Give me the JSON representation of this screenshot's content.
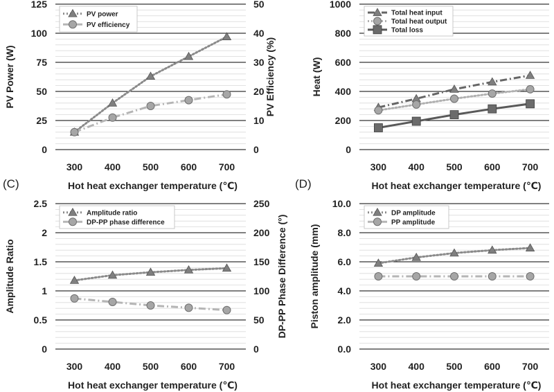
{
  "chart_data": [
    {
      "type": "line",
      "panel_label": "",
      "x": [
        300,
        400,
        500,
        600,
        700
      ],
      "xlabel": "Hot heat exchanger  temperature (℃)",
      "ylabel": "PV Power (W)",
      "ylim": [
        0,
        125
      ],
      "yticks": [
        "0",
        "25",
        "50",
        "75",
        "100",
        "125"
      ],
      "y2label": "PV Efficiency (%)",
      "y2lim": [
        0,
        50
      ],
      "y2ticks": [
        "0",
        "10",
        "20",
        "30",
        "40",
        "50"
      ],
      "grid": true,
      "legend_position": "top-left",
      "series": [
        {
          "name": "PV power",
          "axis": "left",
          "marker": "triangle",
          "line": "dotted",
          "color": "#8a8a8a",
          "values": [
            15,
            40,
            63,
            80,
            97
          ]
        },
        {
          "name": "PV efficiency",
          "axis": "right",
          "marker": "circle",
          "line": "dashdot",
          "color": "#b5b5b5",
          "values": [
            6,
            11,
            15,
            17,
            19
          ]
        }
      ]
    },
    {
      "type": "line",
      "panel_label": "",
      "x": [
        300,
        400,
        500,
        600,
        700
      ],
      "xlabel": "Hot heat exchanger  temperature (℃)",
      "ylabel": "Heat (W)",
      "ylim": [
        0,
        1000
      ],
      "yticks": [
        "0",
        "200",
        "400",
        "600",
        "800",
        "1000"
      ],
      "grid": true,
      "legend_position": "top-left",
      "series": [
        {
          "name": "Total heat input",
          "axis": "left",
          "marker": "triangle",
          "line": "dashdot",
          "color": "#666666",
          "values": [
            290,
            350,
            415,
            465,
            510
          ]
        },
        {
          "name": "Total heat output",
          "axis": "left",
          "marker": "circle",
          "line": "dotted",
          "color": "#b0b0b0",
          "values": [
            270,
            310,
            350,
            385,
            415
          ]
        },
        {
          "name": "Total loss",
          "axis": "left",
          "marker": "square",
          "line": "solid",
          "color": "#595959",
          "values": [
            150,
            195,
            240,
            280,
            315
          ]
        }
      ]
    },
    {
      "type": "line",
      "panel_label": "(C)",
      "x": [
        300,
        400,
        500,
        600,
        700
      ],
      "xlabel": "Hot heat exchanger  temperature (℃)",
      "ylabel": "Amplitude Ratio",
      "ylim": [
        0,
        2.5
      ],
      "yticks": [
        "0",
        "0.5",
        "1",
        "1.5",
        "2",
        "2.5"
      ],
      "y2label": "DP-PP Phase Difference (°)",
      "y2lim": [
        0,
        250
      ],
      "y2ticks": [
        "0",
        "50",
        "100",
        "150",
        "200",
        "250"
      ],
      "grid": true,
      "legend_position": "top-left",
      "series": [
        {
          "name": "Amplitude ratio",
          "axis": "left",
          "marker": "triangle",
          "line": "dotted",
          "color": "#8a8a8a",
          "values": [
            1.18,
            1.27,
            1.32,
            1.36,
            1.39
          ]
        },
        {
          "name": "DP-PP phase difference",
          "axis": "right",
          "marker": "circle",
          "line": "dashdot",
          "color": "#b5b5b5",
          "values": [
            87,
            81,
            75,
            71,
            67
          ]
        }
      ]
    },
    {
      "type": "line",
      "panel_label": "(D)",
      "x": [
        300,
        400,
        500,
        600,
        700
      ],
      "xlabel": "Hot heat exchanger  temperature (℃)",
      "ylabel": "Piston amplitude (mm)",
      "ylim": [
        0,
        10
      ],
      "yticks": [
        "0.0",
        "2.0",
        "4.0",
        "6.0",
        "8.0",
        "10.0"
      ],
      "grid": true,
      "legend_position": "top-left",
      "series": [
        {
          "name": "DP amplitude",
          "axis": "left",
          "marker": "triangle",
          "line": "dotted",
          "color": "#8a8a8a",
          "values": [
            5.9,
            6.3,
            6.6,
            6.8,
            6.95
          ]
        },
        {
          "name": "PP amplitude",
          "axis": "left",
          "marker": "circle",
          "line": "dashdot",
          "color": "#b5b5b5",
          "values": [
            5.0,
            5.0,
            5.0,
            5.0,
            5.0
          ]
        }
      ]
    }
  ]
}
